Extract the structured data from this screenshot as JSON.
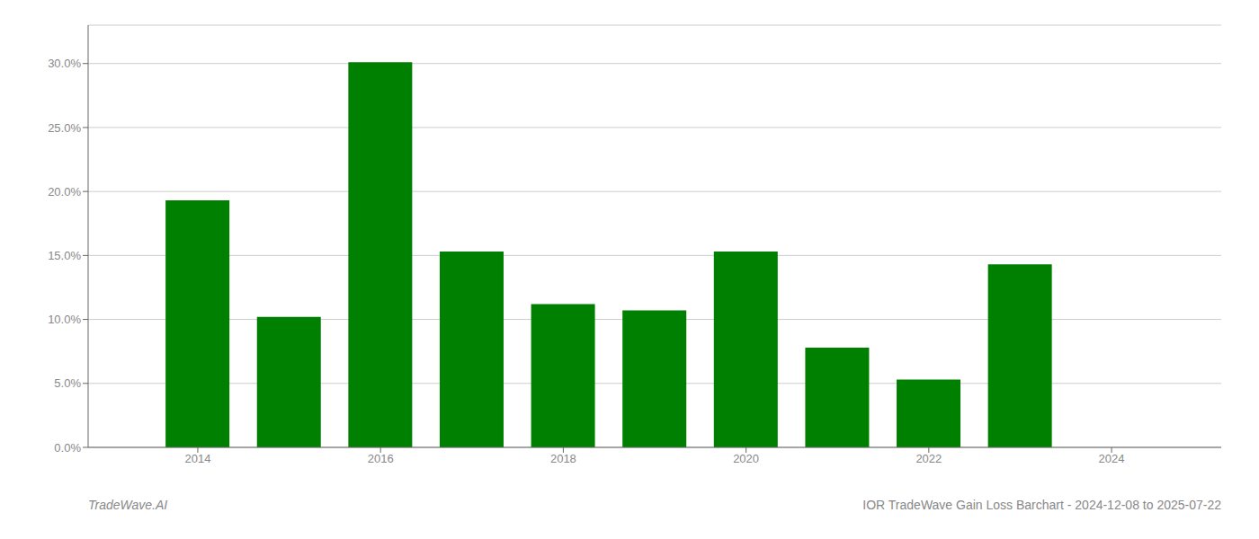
{
  "chart_data": {
    "type": "bar",
    "x": [
      2014,
      2015,
      2016,
      2017,
      2018,
      2019,
      2020,
      2021,
      2022,
      2023
    ],
    "values": [
      0.193,
      0.102,
      0.301,
      0.153,
      0.112,
      0.107,
      0.153,
      0.078,
      0.053,
      0.143
    ],
    "color": "#008000",
    "xlim": [
      2012.8,
      2025.2
    ],
    "xticks": [
      2014,
      2016,
      2018,
      2020,
      2022,
      2024
    ],
    "ylim": [
      0,
      0.33
    ],
    "yticks": [
      {
        "value": 0.0,
        "label": "0.0%"
      },
      {
        "value": 0.05,
        "label": "5.0%"
      },
      {
        "value": 0.1,
        "label": "10.0%"
      },
      {
        "value": 0.15,
        "label": "15.0%"
      },
      {
        "value": 0.2,
        "label": "20.0%"
      },
      {
        "value": 0.25,
        "label": "25.0%"
      },
      {
        "value": 0.3,
        "label": "30.0%"
      }
    ],
    "grid": true,
    "annotations": [
      "TradeWave.AI",
      "IOR TradeWave Gain Loss Barchart - 2024-12-08 to 2025-07-22"
    ]
  }
}
